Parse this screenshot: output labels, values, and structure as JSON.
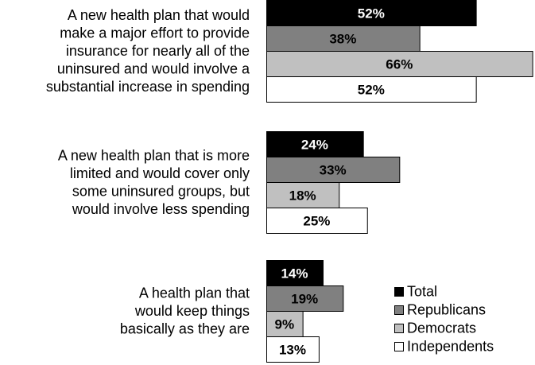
{
  "chart_data": {
    "type": "bar",
    "orientation": "horizontal",
    "categories": [
      [
        "A new health plan that would",
        "make a major effort to provide",
        "insurance for nearly all of the",
        "uninsured and would involve a",
        "substantial increase in spending"
      ],
      [
        "A new health plan that is more",
        "limited and would cover only",
        "some uninsured groups, but",
        "would involve less spending"
      ],
      [
        "A health plan that",
        "would keep things",
        "basically as they are"
      ]
    ],
    "series": [
      {
        "name": "Total",
        "values": [
          52,
          24,
          14
        ],
        "color": "#000000",
        "label_color": "#ffffff"
      },
      {
        "name": "Republicans",
        "values": [
          38,
          33,
          19
        ],
        "color": "#808080",
        "label_color": "#000000"
      },
      {
        "name": "Democrats",
        "values": [
          66,
          18,
          9
        ],
        "color": "#c0c0c0",
        "label_color": "#000000"
      },
      {
        "name": "Independents",
        "values": [
          52,
          25,
          13
        ],
        "color": "#ffffff",
        "label_color": "#000000"
      }
    ],
    "value_suffix": "%",
    "xlim": [
      0,
      66
    ],
    "legend_position": "bottom-right",
    "grid": false
  }
}
